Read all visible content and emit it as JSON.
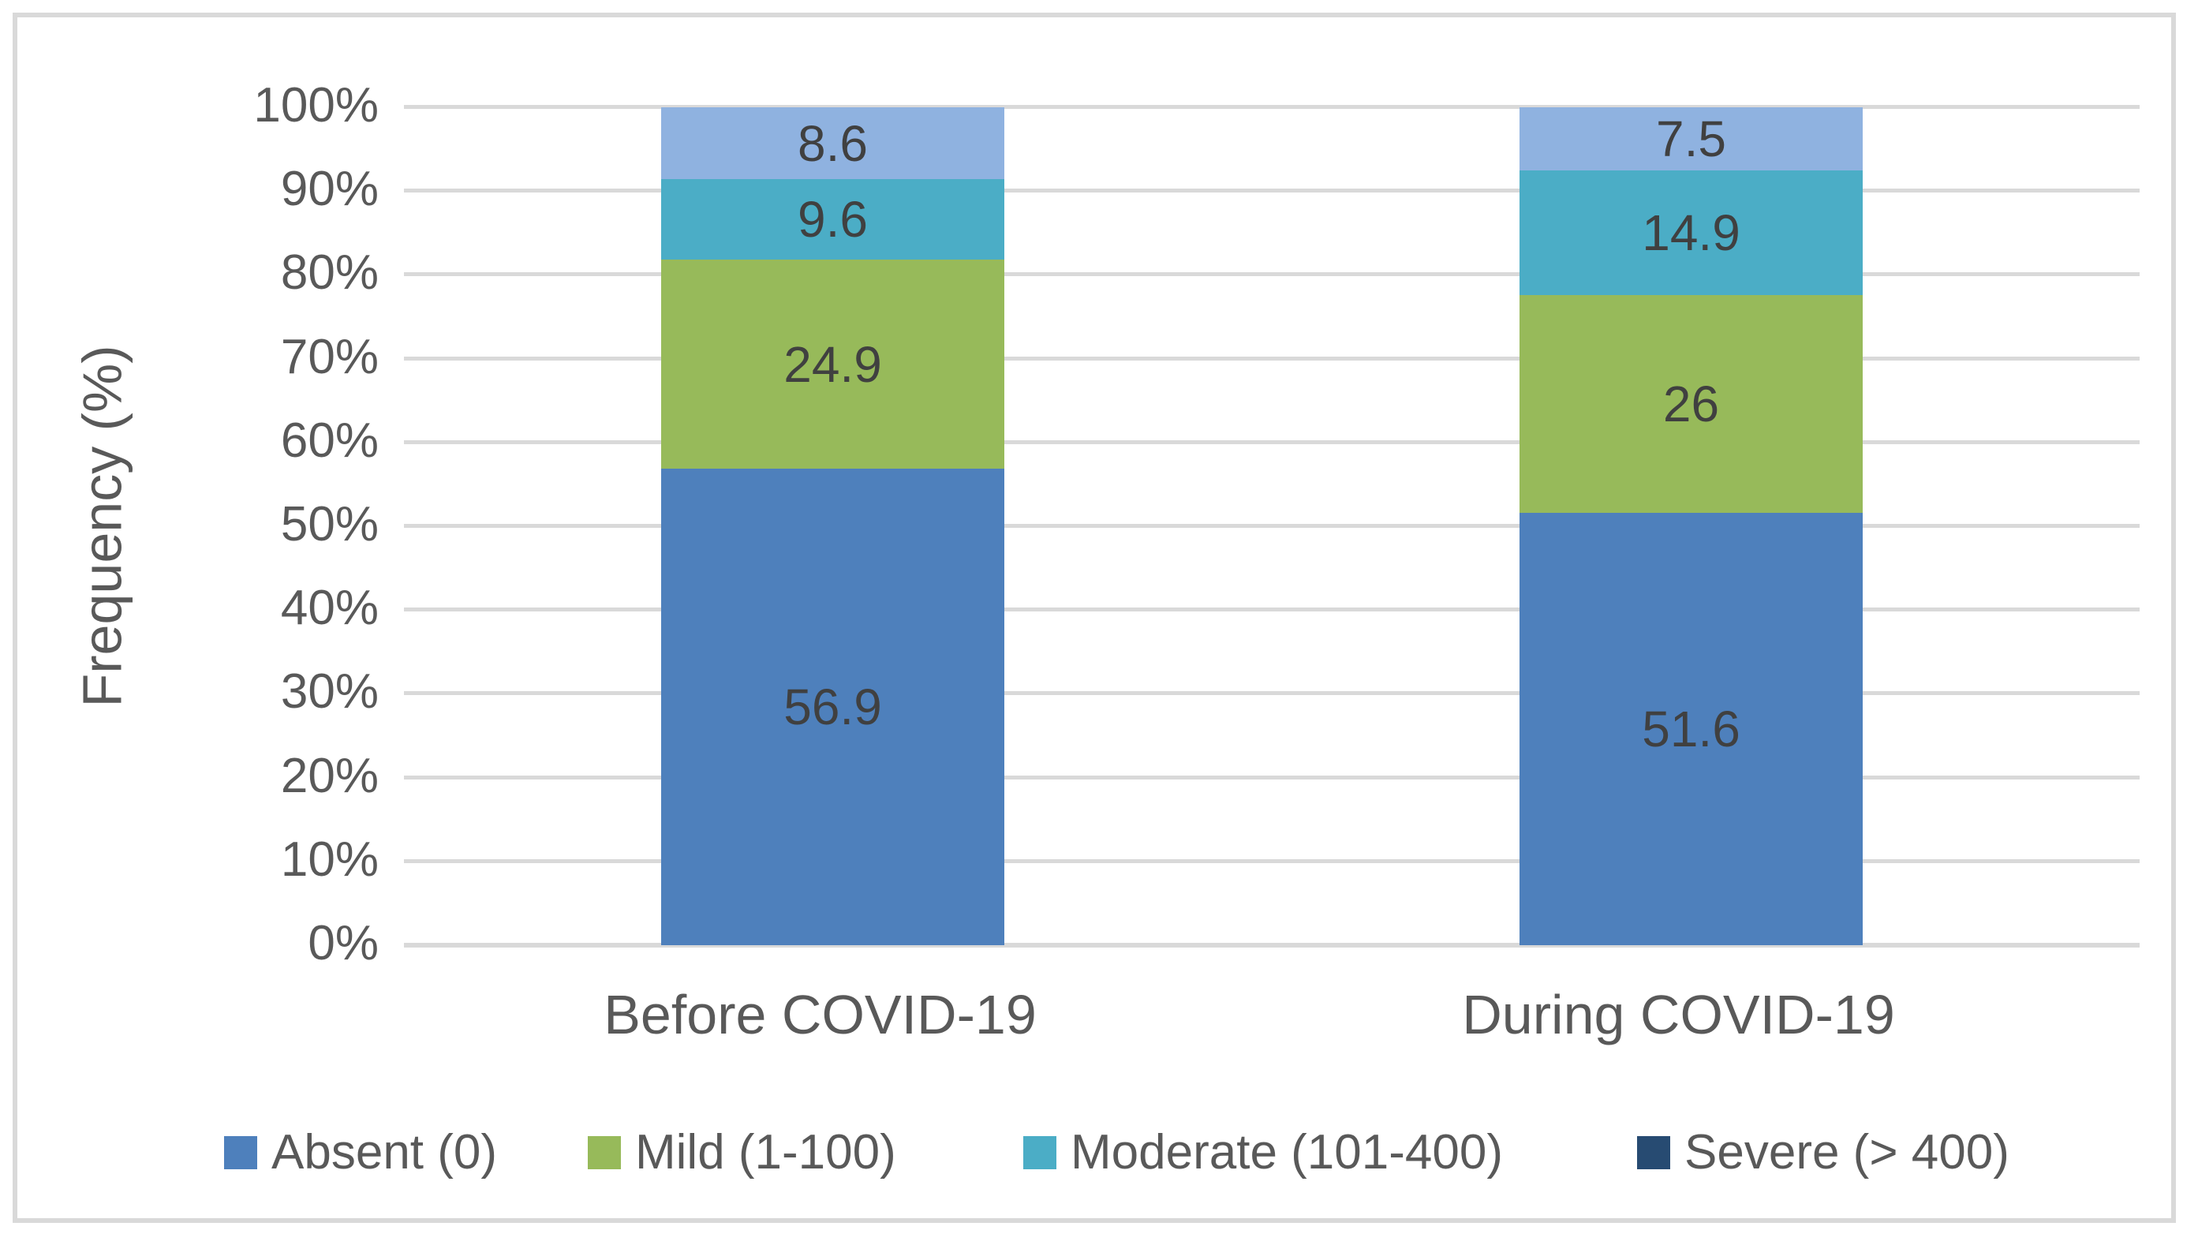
{
  "chart_data": {
    "type": "bar",
    "stacked": true,
    "percent_stacked": true,
    "title": "",
    "xlabel": "",
    "ylabel": "Frequency (%)",
    "ylim": [
      0,
      100
    ],
    "grid": true,
    "legend_position": "bottom",
    "categories": [
      "Before COVID-19",
      "During COVID-19"
    ],
    "y_ticks": [
      "0%",
      "10%",
      "20%",
      "30%",
      "40%",
      "50%",
      "60%",
      "70%",
      "80%",
      "90%",
      "100%"
    ],
    "series": [
      {
        "name": "Absent (0)",
        "values": [
          56.9,
          51.6
        ],
        "data_labels": [
          "56.9",
          "51.6"
        ],
        "bar_color": "#4e80bc",
        "legend_color": "#4e80bc"
      },
      {
        "name": "Mild (1-100)",
        "values": [
          24.9,
          26
        ],
        "data_labels": [
          "24.9",
          "26"
        ],
        "bar_color": "#97ba5a",
        "legend_color": "#97ba5a"
      },
      {
        "name": "Moderate (101-400)",
        "values": [
          9.6,
          14.9
        ],
        "data_labels": [
          "9.6",
          "14.9"
        ],
        "bar_color": "#4badc6",
        "legend_color": "#4badc6"
      },
      {
        "name": "Severe (> 400)",
        "values": [
          8.6,
          7.5
        ],
        "data_labels": [
          "8.6",
          "7.5"
        ],
        "bar_color": "#8fb2e0",
        "legend_color": "#274b72"
      }
    ],
    "colors": {
      "grid": "#d9d9d9",
      "frame_border": "#d9d9d9",
      "axis_text": "#595959",
      "data_label_text": "#404040",
      "background": "#ffffff"
    }
  }
}
